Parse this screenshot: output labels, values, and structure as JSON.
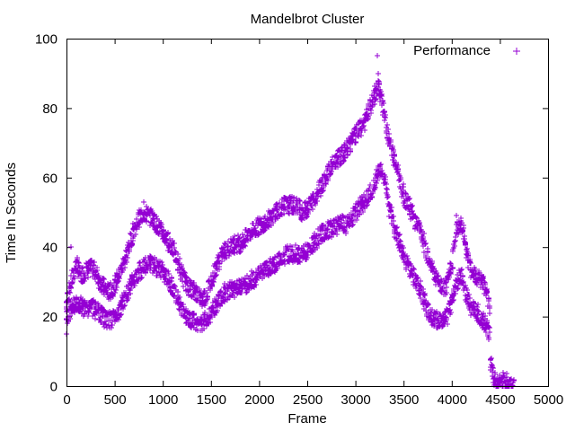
{
  "chart_data": {
    "type": "scatter",
    "title": "Mandelbrot Cluster",
    "xlabel": "Frame",
    "ylabel": "Time In Seconds",
    "xlim": [
      0,
      5000
    ],
    "ylim": [
      0,
      100
    ],
    "xticks": [
      "0",
      "500",
      "1000",
      "1500",
      "2000",
      "2500",
      "3000",
      "3500",
      "4000",
      "4500",
      "5000"
    ],
    "yticks": [
      "0",
      "20",
      "40",
      "60",
      "80",
      "100"
    ],
    "grid": false,
    "legend_position": "top-right",
    "marker": "+",
    "series": [
      {
        "name": "Performance",
        "color": "#9400d3",
        "bands": [
          {
            "label": "upper",
            "x": [
              0,
              50,
              100,
              150,
              200,
              250,
              300,
              350,
              400,
              450,
              500,
              550,
              600,
              650,
              700,
              750,
              800,
              850,
              900,
              950,
              1000,
              1050,
              1100,
              1150,
              1200,
              1250,
              1300,
              1350,
              1400,
              1450,
              1500,
              1550,
              1600,
              1650,
              1700,
              1750,
              1800,
              1850,
              1900,
              1950,
              2000,
              2050,
              2100,
              2150,
              2200,
              2250,
              2300,
              2350,
              2400,
              2450,
              2500,
              2550,
              2600,
              2650,
              2700,
              2750,
              2800,
              2850,
              2900,
              2950,
              3000,
              3050,
              3100,
              3150,
              3200,
              3250,
              3300,
              3350,
              3400,
              3450,
              3500,
              3550,
              3600,
              3650,
              3700,
              3750,
              3800,
              3850,
              3900,
              3950,
              4000,
              4050,
              4100,
              4150,
              4200,
              4250,
              4300,
              4350,
              4400
            ],
            "y": [
              24,
              30,
              35,
              32,
              33,
              34,
              33,
              30,
              28,
              27,
              29,
              32,
              36,
              40,
              45,
              48,
              50,
              49,
              48,
              46,
              44,
              42,
              40,
              36,
              32,
              29,
              28,
              27,
              25,
              26,
              30,
              34,
              37,
              39,
              40,
              41,
              41,
              42,
              44,
              45,
              46,
              47,
              48,
              49,
              51,
              52,
              52,
              52,
              52,
              50,
              51,
              53,
              55,
              58,
              61,
              63,
              65,
              66,
              68,
              70,
              72,
              74,
              76,
              80,
              84,
              86,
              78,
              70,
              66,
              60,
              55,
              52,
              49,
              46,
              42,
              38,
              34,
              30,
              28,
              29,
              35,
              45,
              47,
              40,
              33,
              32,
              31,
              28,
              22
            ]
          },
          {
            "label": "lower",
            "x": [
              0,
              50,
              100,
              150,
              200,
              250,
              300,
              350,
              400,
              450,
              500,
              550,
              600,
              650,
              700,
              750,
              800,
              850,
              900,
              950,
              1000,
              1050,
              1100,
              1150,
              1200,
              1250,
              1300,
              1350,
              1400,
              1450,
              1500,
              1550,
              1600,
              1650,
              1700,
              1750,
              1800,
              1850,
              1900,
              1950,
              2000,
              2050,
              2100,
              2150,
              2200,
              2250,
              2300,
              2350,
              2400,
              2450,
              2500,
              2550,
              2600,
              2650,
              2700,
              2750,
              2800,
              2850,
              2900,
              2950,
              3000,
              3050,
              3100,
              3150,
              3200,
              3250,
              3300,
              3350,
              3400,
              3450,
              3500,
              3550,
              3600,
              3650,
              3700,
              3750,
              3800,
              3850,
              3900,
              3950,
              4000,
              4050,
              4100,
              4150,
              4200,
              4250,
              4300,
              4350,
              4400
            ],
            "y": [
              20,
              22,
              24,
              23,
              22,
              23,
              22,
              21,
              19,
              19,
              20,
              22,
              25,
              28,
              31,
              33,
              34,
              35,
              35,
              34,
              33,
              31,
              29,
              25,
              22,
              20,
              19,
              18,
              18,
              19,
              21,
              23,
              25,
              27,
              28,
              28,
              29,
              29,
              30,
              31,
              32,
              33,
              34,
              35,
              36,
              37,
              38,
              38,
              38,
              38,
              39,
              41,
              42,
              44,
              45,
              45,
              46,
              47,
              46,
              48,
              50,
              52,
              53,
              55,
              58,
              63,
              60,
              52,
              46,
              42,
              38,
              34,
              32,
              29,
              26,
              22,
              20,
              19,
              19,
              20,
              24,
              30,
              32,
              26,
              22,
              22,
              20,
              18,
              14
            ]
          },
          {
            "label": "tail",
            "x": [
              4400,
              4430,
              4460,
              4490,
              4520,
              4550,
              4580,
              4610,
              4640
            ],
            "y": [
              8,
              3,
              1,
              1,
              1,
              2,
              1,
              1,
              0
            ]
          }
        ],
        "outliers": [
          {
            "x": 3230,
            "y": 95
          },
          {
            "x": 3235,
            "y": 90
          },
          {
            "x": 3240,
            "y": 86
          },
          {
            "x": 3250,
            "y": 84
          },
          {
            "x": 3260,
            "y": 82
          },
          {
            "x": 800,
            "y": 53
          },
          {
            "x": 4050,
            "y": 49
          },
          {
            "x": 50,
            "y": 40
          },
          {
            "x": 0,
            "y": 15
          }
        ]
      }
    ]
  }
}
